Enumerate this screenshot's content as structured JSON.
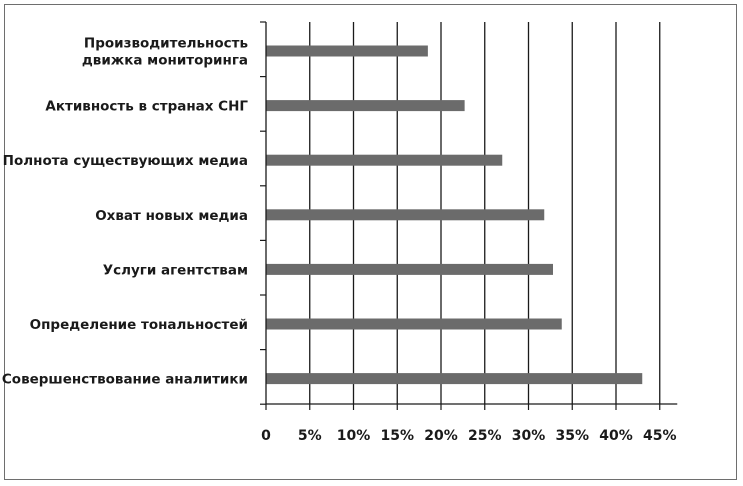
{
  "chart_data": {
    "type": "bar",
    "orientation": "horizontal",
    "title": "",
    "xlabel": "",
    "ylabel": "",
    "categories": [
      [
        "Производительность",
        "движка мониторинга"
      ],
      [
        "Активность в странах СНГ"
      ],
      [
        "Полнота существующих медиа"
      ],
      [
        "Охват новых медиа"
      ],
      [
        "Услуги агентствам"
      ],
      [
        "Определение тональностей"
      ],
      [
        "Совершенствование аналитики"
      ]
    ],
    "values": [
      18.5,
      22.7,
      27.0,
      31.8,
      32.8,
      33.8,
      43.0
    ],
    "xlim": [
      0,
      47
    ],
    "xticks": [
      0,
      5,
      10,
      15,
      20,
      25,
      30,
      35,
      40,
      45
    ],
    "xtick_labels": [
      "0",
      "5%",
      "10%",
      "15%",
      "20%",
      "25%",
      "30%",
      "35%",
      "40%",
      "45%"
    ],
    "grid": true,
    "legend": "none",
    "bar_color": "#6b6b6b",
    "grid_color": "#1a1a1a"
  }
}
